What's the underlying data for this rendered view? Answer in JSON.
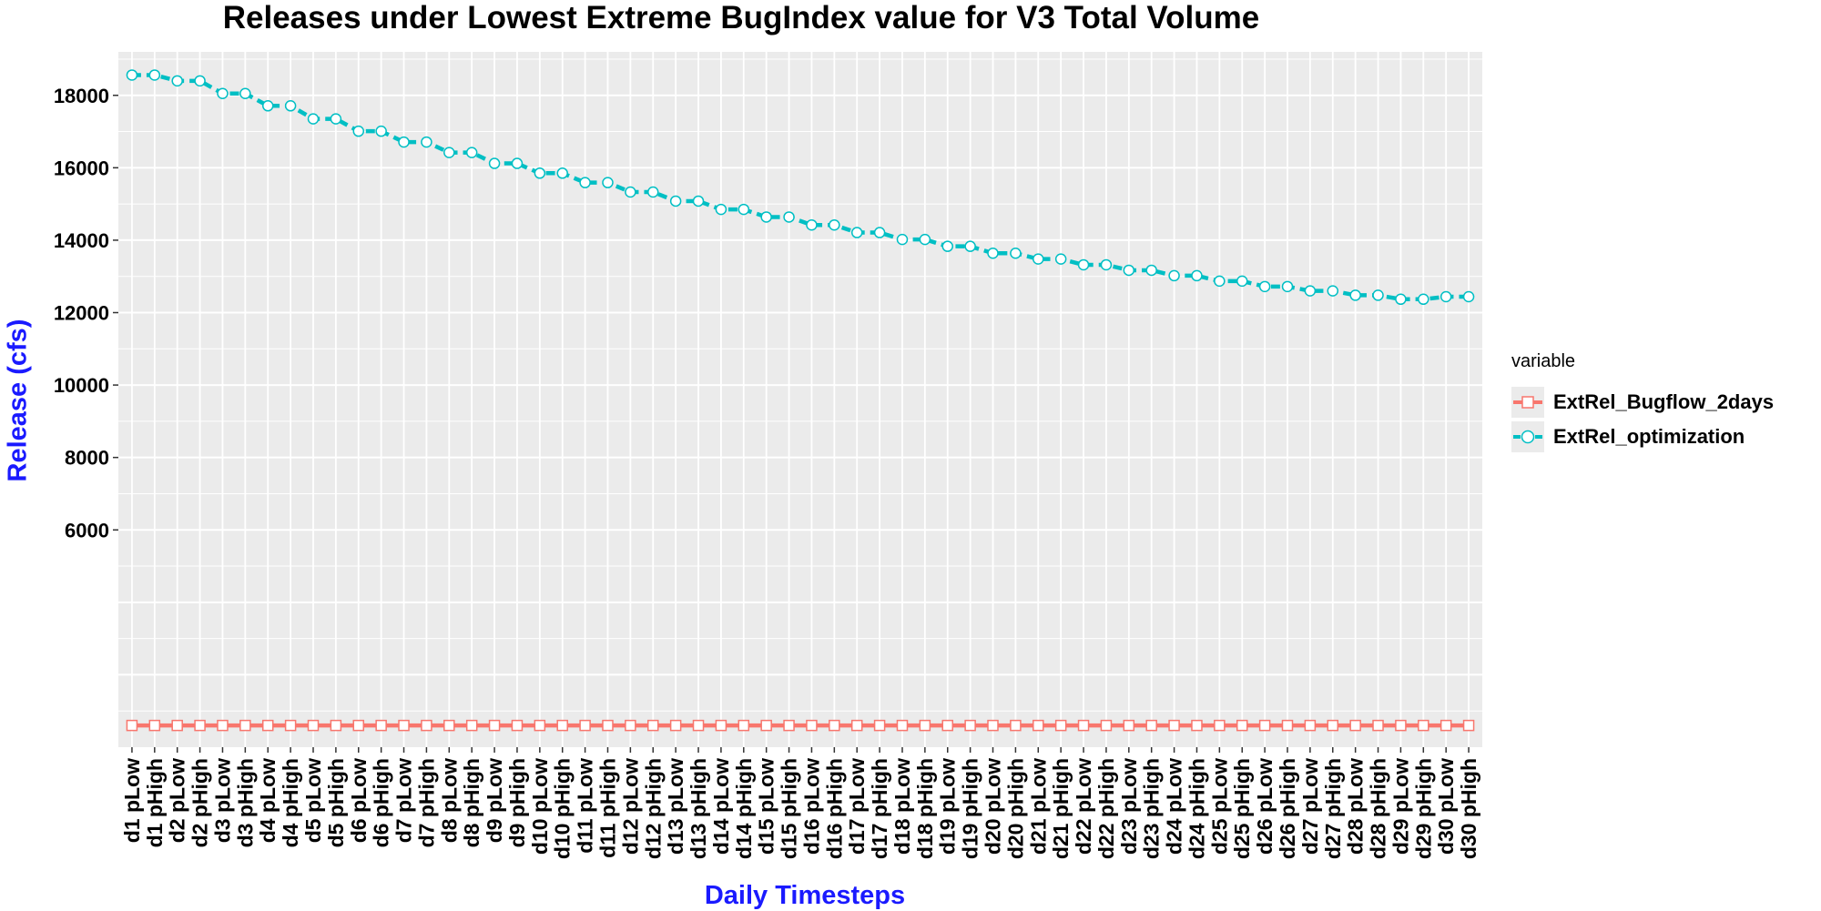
{
  "chart_data": {
    "type": "line",
    "title": "Releases under Lowest Extreme BugIndex value for V3 Total Volume",
    "xlabel": "Daily Timesteps",
    "ylabel": "Release (cfs)",
    "ylim": [
      0,
      19200
    ],
    "yticks": [
      6000,
      8000,
      10000,
      12000,
      14000,
      16000,
      18000
    ],
    "grid": true,
    "legend_title": "variable",
    "legend_position": "right",
    "categories": [
      "d1 pLow",
      "d1 pHigh",
      "d2 pLow",
      "d2 pHigh",
      "d3 pLow",
      "d3 pHigh",
      "d4 pLow",
      "d4 pHigh",
      "d5 pLow",
      "d5 pHigh",
      "d6 pLow",
      "d6 pHigh",
      "d7 pLow",
      "d7 pHigh",
      "d8 pLow",
      "d8 pHigh",
      "d9 pLow",
      "d9 pHigh",
      "d10 pLow",
      "d10 pHigh",
      "d11 pLow",
      "d11 pHigh",
      "d12 pLow",
      "d12 pHigh",
      "d13 pLow",
      "d13 pHigh",
      "d14 pLow",
      "d14 pHigh",
      "d15 pLow",
      "d15 pHigh",
      "d16 pLow",
      "d16 pHigh",
      "d17 pLow",
      "d17 pHigh",
      "d18 pLow",
      "d18 pHigh",
      "d19 pLow",
      "d19 pHigh",
      "d20 pLow",
      "d20 pHigh",
      "d21 pLow",
      "d21 pHigh",
      "d22 pLow",
      "d22 pHigh",
      "d23 pLow",
      "d23 pHigh",
      "d24 pLow",
      "d24 pHigh",
      "d25 pLow",
      "d25 pHigh",
      "d26 pLow",
      "d26 pHigh",
      "d27 pLow",
      "d27 pHigh",
      "d28 pLow",
      "d28 pHigh",
      "d29 pLow",
      "d29 pHigh",
      "d30 pLow",
      "d30 pHigh"
    ],
    "series": [
      {
        "name": "ExtRel_Bugflow_2days",
        "color": "#f8766d",
        "marker": "square",
        "line": "solid",
        "values": [
          600,
          600,
          600,
          600,
          600,
          600,
          600,
          600,
          600,
          600,
          600,
          600,
          600,
          600,
          600,
          600,
          600,
          600,
          600,
          600,
          600,
          600,
          600,
          600,
          600,
          600,
          600,
          600,
          600,
          600,
          600,
          600,
          600,
          600,
          600,
          600,
          600,
          600,
          600,
          600,
          600,
          600,
          600,
          600,
          600,
          600,
          600,
          600,
          600,
          600,
          600,
          600,
          600,
          600,
          600,
          600,
          600,
          600,
          600,
          600
        ]
      },
      {
        "name": "ExtRel_optimization",
        "color": "#00bfc4",
        "marker": "circle",
        "line": "dashed",
        "values": [
          18560,
          18560,
          18400,
          18400,
          18050,
          18050,
          17710,
          17710,
          17350,
          17350,
          17010,
          17010,
          16710,
          16710,
          16420,
          16420,
          16120,
          16120,
          15850,
          15850,
          15590,
          15590,
          15330,
          15330,
          15080,
          15080,
          14850,
          14850,
          14640,
          14640,
          14420,
          14420,
          14210,
          14210,
          14020,
          14020,
          13830,
          13830,
          13640,
          13640,
          13480,
          13480,
          13320,
          13320,
          13170,
          13170,
          13020,
          13020,
          12870,
          12870,
          12720,
          12720,
          12600,
          12600,
          12480,
          12480,
          12370,
          12370,
          12440,
          12440
        ]
      }
    ]
  }
}
